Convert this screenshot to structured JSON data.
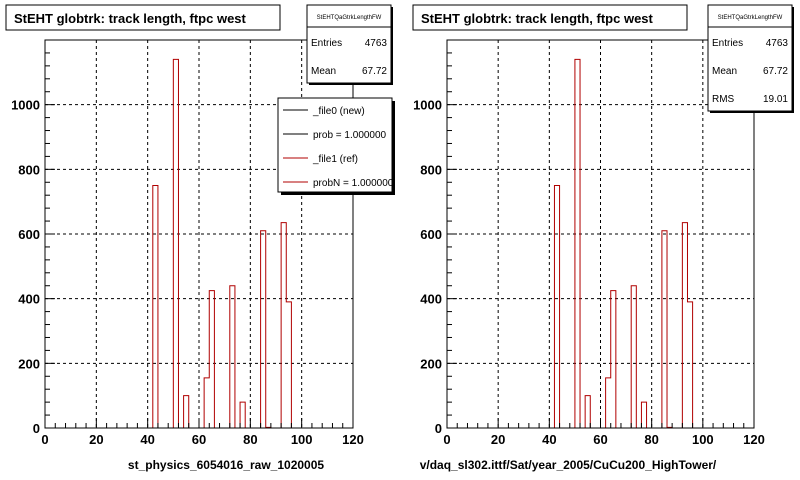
{
  "chart_data": [
    {
      "type": "bar",
      "title": "StEHT globtrk: track length, ftpc west",
      "xlabel": "st_physics_6054016_raw_1020005",
      "ylabel": "",
      "xlim": [
        0,
        120
      ],
      "ylim": [
        0,
        1200
      ],
      "xticks": [
        "0",
        "20",
        "40",
        "60",
        "80",
        "100",
        "120"
      ],
      "yticks": [
        "0",
        "200",
        "400",
        "600",
        "800",
        "1000"
      ],
      "grid": true,
      "stats": {
        "name": "StEHTQaGtrkLengthFW",
        "rows": [
          {
            "label": "Entries",
            "value": "4763"
          },
          {
            "label": "Mean",
            "value": "67.72"
          }
        ]
      },
      "legend": [
        {
          "label": "_file0 (new)",
          "color": "#000000"
        },
        {
          "label": "prob = 1.000000",
          "color": "#000000"
        },
        {
          "label": "_file1 (ref)",
          "color": "#b00000"
        },
        {
          "label": "probN = 1.000000",
          "color": "#b00000"
        }
      ],
      "series": [
        {
          "bin_width": 2,
          "bins": [
            {
              "x": 42,
              "y": 750
            },
            {
              "x": 50,
              "y": 1140
            },
            {
              "x": 54,
              "y": 100
            },
            {
              "x": 62,
              "y": 155
            },
            {
              "x": 64,
              "y": 425
            },
            {
              "x": 72,
              "y": 440
            },
            {
              "x": 76,
              "y": 80
            },
            {
              "x": 84,
              "y": 610
            },
            {
              "x": 86,
              "y": 2
            },
            {
              "x": 92,
              "y": 635
            },
            {
              "x": 94,
              "y": 390
            }
          ]
        }
      ]
    },
    {
      "type": "bar",
      "title": "StEHT globtrk: track length, ftpc west",
      "xlabel": "v/daq_sl302.ittf/Sat/year_2005/CuCu200_HighTower/",
      "ylabel": "",
      "xlim": [
        0,
        120
      ],
      "ylim": [
        0,
        1200
      ],
      "xticks": [
        "0",
        "20",
        "40",
        "60",
        "80",
        "100",
        "120"
      ],
      "yticks": [
        "0",
        "200",
        "400",
        "600",
        "800",
        "1000"
      ],
      "grid": true,
      "stats": {
        "name": "StEHTQaGtrkLengthFW",
        "rows": [
          {
            "label": "Entries",
            "value": "4763"
          },
          {
            "label": "Mean",
            "value": "67.72"
          },
          {
            "label": "RMS",
            "value": "19.01"
          }
        ]
      },
      "series": [
        {
          "bin_width": 2,
          "bins": [
            {
              "x": 42,
              "y": 750
            },
            {
              "x": 50,
              "y": 1140
            },
            {
              "x": 54,
              "y": 100
            },
            {
              "x": 62,
              "y": 155
            },
            {
              "x": 64,
              "y": 425
            },
            {
              "x": 72,
              "y": 440
            },
            {
              "x": 76,
              "y": 80
            },
            {
              "x": 84,
              "y": 610
            },
            {
              "x": 86,
              "y": 2
            },
            {
              "x": 92,
              "y": 635
            },
            {
              "x": 94,
              "y": 390
            }
          ]
        }
      ]
    }
  ]
}
